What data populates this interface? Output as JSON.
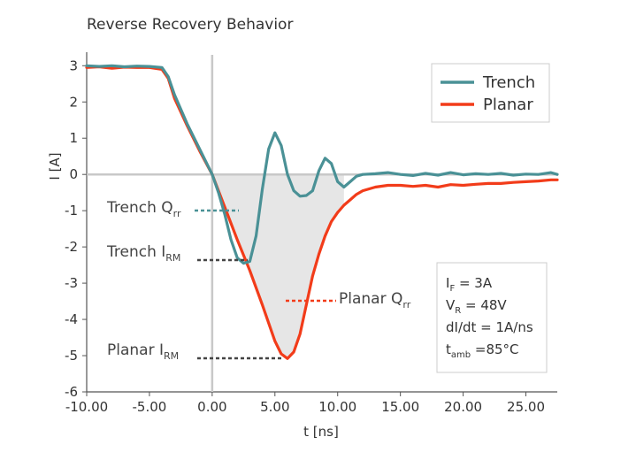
{
  "chart_data": {
    "type": "line",
    "title": "Reverse Recovery Behavior",
    "xlabel": "t [ns]",
    "ylabel": "I [A]",
    "xlim": [
      -10,
      27.5
    ],
    "ylim": [
      -6,
      3.3
    ],
    "xticks": [
      "-10.00",
      "-5.00",
      "0.00",
      "5.00",
      "10.00",
      "15.00",
      "20.00",
      "25.00"
    ],
    "yticks": [
      "3",
      "2",
      "1",
      "0",
      "-1",
      "-2",
      "-3",
      "-4",
      "-5",
      "-6"
    ],
    "grid": false,
    "legend_position": "top-right",
    "series": [
      {
        "name": "Trench",
        "color": "#4a9196",
        "x": [
          -10,
          -9,
          -8,
          -7,
          -6,
          -5,
          -4,
          -3.5,
          -3,
          -2,
          -1,
          0,
          0.5,
          1,
          1.5,
          2,
          2.5,
          3,
          3.5,
          4,
          4.5,
          5,
          5.5,
          6,
          6.5,
          7,
          7.5,
          8,
          8.5,
          9,
          9.5,
          10,
          10.5,
          11,
          11.5,
          12,
          13,
          14,
          15,
          16,
          17,
          18,
          19,
          20,
          21,
          22,
          23,
          24,
          25,
          26,
          27,
          27.5
        ],
        "values": [
          3.0,
          2.98,
          3.0,
          2.97,
          2.99,
          2.98,
          2.95,
          2.7,
          2.2,
          1.4,
          0.7,
          0.0,
          -0.5,
          -1.1,
          -1.8,
          -2.3,
          -2.45,
          -2.4,
          -1.7,
          -0.4,
          0.7,
          1.15,
          0.8,
          0.0,
          -0.45,
          -0.6,
          -0.58,
          -0.45,
          0.1,
          0.45,
          0.3,
          -0.2,
          -0.35,
          -0.2,
          -0.05,
          0.0,
          0.02,
          0.05,
          0.0,
          -0.03,
          0.03,
          -0.02,
          0.05,
          -0.01,
          0.02,
          0.0,
          0.03,
          -0.02,
          0.01,
          0.0,
          0.05,
          0.0
        ]
      },
      {
        "name": "Planar",
        "color": "#f23c1a",
        "x": [
          -10,
          -9,
          -8,
          -7,
          -6,
          -5,
          -4,
          -3.5,
          -3,
          -2,
          -1,
          0,
          1,
          2,
          3,
          4,
          5,
          5.5,
          6,
          6.5,
          7,
          7.5,
          8,
          8.5,
          9,
          9.5,
          10,
          10.5,
          11,
          11.5,
          12,
          13,
          14,
          15,
          16,
          17,
          18,
          19,
          20,
          21,
          22,
          23,
          24,
          25,
          26,
          27,
          27.5
        ],
        "values": [
          2.95,
          2.97,
          2.93,
          2.96,
          2.95,
          2.95,
          2.9,
          2.65,
          2.1,
          1.35,
          0.65,
          0.0,
          -0.9,
          -1.8,
          -2.65,
          -3.6,
          -4.6,
          -4.95,
          -5.08,
          -4.9,
          -4.4,
          -3.6,
          -2.8,
          -2.2,
          -1.7,
          -1.3,
          -1.05,
          -0.85,
          -0.7,
          -0.55,
          -0.45,
          -0.35,
          -0.3,
          -0.3,
          -0.33,
          -0.3,
          -0.35,
          -0.28,
          -0.3,
          -0.27,
          -0.25,
          -0.25,
          -0.22,
          -0.2,
          -0.18,
          -0.15,
          -0.15
        ]
      }
    ],
    "annotations": {
      "trench_qrr": "Trench Q",
      "trench_qrr_sub": "rr",
      "trench_irm": "Trench I",
      "trench_irm_sub": "RM",
      "planar_qrr": "Planar Q",
      "planar_qrr_sub": "rr",
      "planar_irm": "Planar I",
      "planar_irm_sub": "RM"
    },
    "conditions": [
      {
        "main": "I",
        "sub": "F",
        "rest": " = 3A"
      },
      {
        "main": "V",
        "sub": "R",
        "rest": " = 48V"
      },
      {
        "main": "dI/dt = 1A/ns",
        "sub": "",
        "rest": ""
      },
      {
        "main": "t",
        "sub": "amb",
        "rest": " =85°C"
      }
    ]
  }
}
